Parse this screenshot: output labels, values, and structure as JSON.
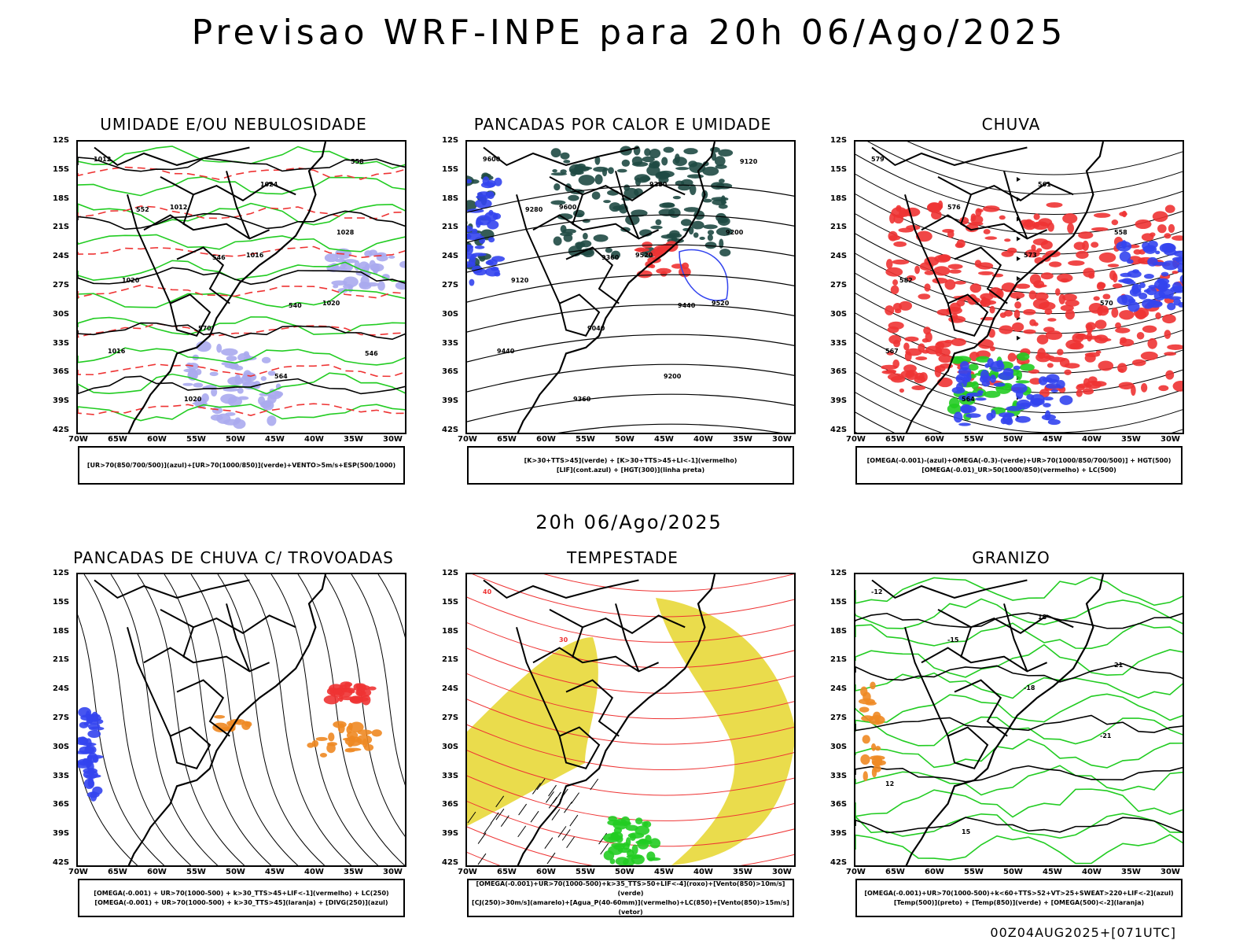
{
  "header": {
    "title": "Previsao WRF-INPE  para 20h 06/Ago/2025"
  },
  "middle_title": "20h 06/Ago/2025",
  "footer": "00Z04AUG2025+[071UTC]",
  "axes": {
    "lat": [
      "12S",
      "15S",
      "18S",
      "21S",
      "24S",
      "27S",
      "30S",
      "33S",
      "36S",
      "39S",
      "42S"
    ],
    "lon": [
      "70W",
      "65W",
      "60W",
      "55W",
      "50W",
      "45W",
      "40W",
      "35W",
      "30W"
    ]
  },
  "colors": {
    "green": "#22cc22",
    "red": "#ee3333",
    "blue": "#3344ee",
    "lavender": "#aaaaee",
    "darkteal": "#1f4a44",
    "yellow": "#e8d838",
    "orange": "#ee8822"
  },
  "panels": [
    {
      "title": "UMIDADE E/OU NEBULOSIDADE",
      "legend": [
        "[UR>70(850/700/500)](azul)+[UR>70(1000/850)](verde)+VENTO>5m/s+ESP(500/1000)"
      ],
      "labels": [
        "1012",
        "1012",
        "1016",
        "1020",
        "1016",
        "1020",
        "1024",
        "1028",
        "1020",
        "570",
        "564",
        "558",
        "552",
        "546",
        "540",
        "546"
      ]
    },
    {
      "title": "PANCADAS POR CALOR E UMIDADE",
      "legend": [
        "[K>30+TTS>45](verde) + [K>30+TTS>45+LI<-1](vermelho)",
        "[LIF](cont.azul) + [HGT(300)](linha preta)"
      ],
      "labels": [
        "9600",
        "9600",
        "9520",
        "9520",
        "9440",
        "9360",
        "9280",
        "9200",
        "9120",
        "9040",
        "9200",
        "9120",
        "9280",
        "9360",
        "9440"
      ]
    },
    {
      "title": "CHUVA",
      "legend": [
        "[OMEGA(-0.001)-(azul)+OMEGA(-0.3)-(verde)+UR>70(1000/850/700/500)] + HGT(500)",
        "[OMEGA(-0.01)_UR>50(1000/850)(vermelho) + LC(500)"
      ],
      "labels": [
        "579",
        "576",
        "573",
        "570",
        "567",
        "564",
        "561",
        "558",
        "582"
      ]
    },
    {
      "title": "PANCADAS DE CHUVA C/ TROVOADAS",
      "legend": [
        "[OMEGA(-0.001) + UR>70(1000-500) + k>30_TTS>45+LIF<-1](vermelho) + LC(250)",
        "[OMEGA(-0.001) + UR>70(1000-500) + k>30_TTS>45](laranja) + [DIVG(250)](azul)"
      ],
      "labels": []
    },
    {
      "title": "TEMPESTADE",
      "legend": [
        "[OMEGA(-0.001)+UR>70(1000-500)+k>35_TTS>50+LIF<-4](roxo)+[Vento(850)>10m/s](verde)",
        "[CJ(250)>30m/s](amarelo)+[Agua_P(40-60mm)](vermelho)+LC(850)+[Vento(850)>15m/s](vetor)"
      ],
      "labels": [
        "40",
        "30"
      ]
    },
    {
      "title": "GRANIZO",
      "legend": [
        "[OMEGA(-0.001)+UR>70(1000-500)+k<60+TTS>52+VT>25+SWEAT>220+LIF<-2](azul)",
        "[Temp(500)](preto) + [Temp(850)](verde) + [OMEGA(500)<-2](laranja)"
      ],
      "labels": [
        "-12",
        "-15",
        "-18",
        "-21",
        "12",
        "15",
        "18",
        "21"
      ]
    }
  ]
}
